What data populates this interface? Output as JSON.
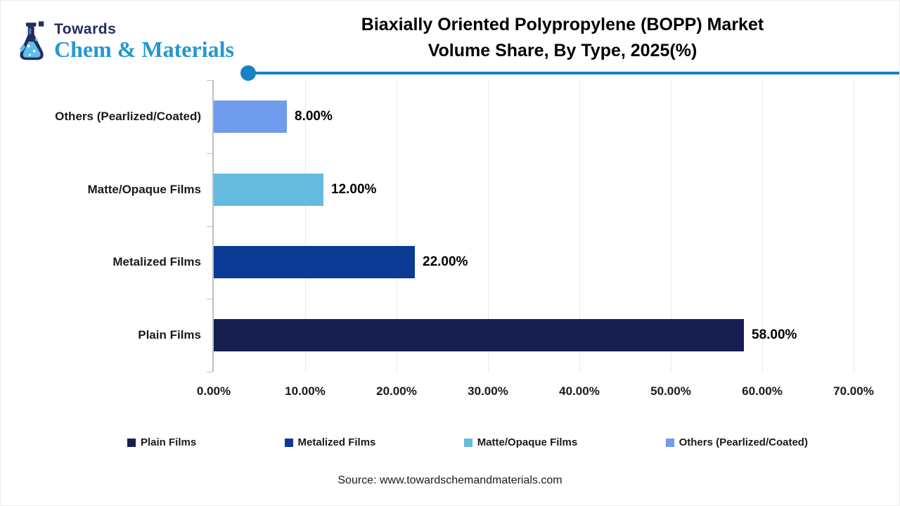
{
  "header": {
    "logo_line1": "Towards",
    "logo_line2": "Chem & Materials",
    "title_line1": "Biaxially Oriented Polypropylene (BOPP) Market",
    "title_line2": "Volume Share, By Type, 2025(%)"
  },
  "chart_data": {
    "type": "bar",
    "orientation": "horizontal",
    "title": "Biaxially Oriented Polypropylene (BOPP) Market Volume Share, By Type, 2025(%)",
    "categories": [
      "Others (Pearlized/Coated)",
      "Matte/Opaque Films",
      "Metalized Films",
      "Plain Films"
    ],
    "values": [
      8,
      12,
      22,
      58
    ],
    "value_labels": [
      "8.00%",
      "12.00%",
      "22.00%",
      "58.00%"
    ],
    "bar_colors": [
      "#6F9CEC",
      "#64BBDE",
      "#0B3B94",
      "#161F4F"
    ],
    "xlim": [
      0,
      70
    ],
    "x_tick_step": 10,
    "x_tick_labels": [
      "0.00%",
      "10.00%",
      "20.00%",
      "30.00%",
      "40.00%",
      "50.00%",
      "60.00%",
      "70.00%"
    ],
    "grid": true,
    "legend_position": "bottom",
    "legend": [
      {
        "label": "Plain Films",
        "color": "#161F4F"
      },
      {
        "label": "Metalized Films",
        "color": "#0B3B94"
      },
      {
        "label": "Matte/Opaque Films",
        "color": "#64BBDE"
      },
      {
        "label": "Others (Pearlized/Coated)",
        "color": "#6F9CEC"
      }
    ]
  },
  "footer": {
    "source": "Source: www.towardschemandmaterials.com"
  },
  "colors": {
    "divider_accent": "#1482C4",
    "logo_navy": "#232B61",
    "logo_blue": "#2597D3",
    "gridline": "#e9e9e9",
    "axis": "#bfbfbf"
  }
}
